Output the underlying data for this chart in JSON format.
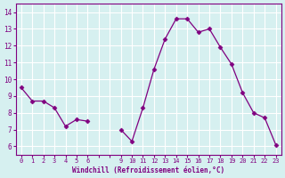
{
  "x": [
    0,
    1,
    2,
    3,
    4,
    5,
    6,
    9,
    10,
    11,
    12,
    13,
    14,
    15,
    16,
    17,
    18,
    19,
    20,
    21,
    22,
    23
  ],
  "y": [
    9.5,
    8.7,
    8.7,
    8.3,
    7.2,
    7.6,
    7.5,
    7.0,
    6.3,
    8.3,
    10.6,
    12.4,
    13.6,
    13.6,
    12.8,
    13.0,
    11.9,
    10.9,
    9.2,
    8.0,
    7.7,
    6.1
  ],
  "line_color": "#800080",
  "marker_color": "#800080",
  "bg_color": "#d6f0f0",
  "grid_color": "#ffffff",
  "xlabel": "Windchill (Refroidissement éolien,°C)",
  "xlabel_color": "#800080",
  "tick_color": "#800080",
  "ylim": [
    5.5,
    14.5
  ],
  "yticks": [
    6,
    7,
    8,
    9,
    10,
    11,
    12,
    13,
    14
  ]
}
